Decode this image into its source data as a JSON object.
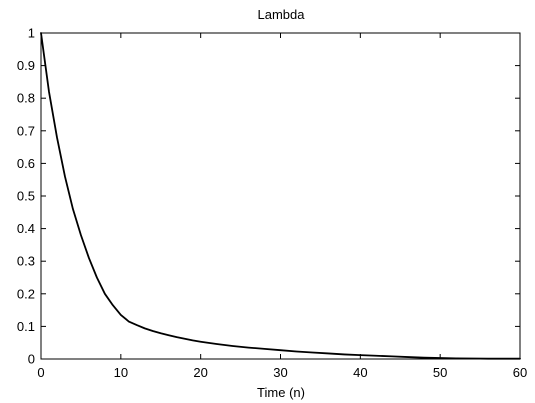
{
  "chart_data": {
    "type": "line",
    "title": "Lambda",
    "xlabel": "Time (n)",
    "ylabel": "",
    "xlim": [
      0,
      60
    ],
    "ylim": [
      0,
      1
    ],
    "grid": false,
    "x_ticks": [
      0,
      10,
      20,
      30,
      40,
      50,
      60
    ],
    "y_ticks": [
      0,
      0.1,
      0.2,
      0.3,
      0.4,
      0.5,
      0.6,
      0.7,
      0.8,
      0.9,
      1
    ],
    "x_tick_labels": [
      "0",
      "10",
      "20",
      "30",
      "40",
      "50",
      "60"
    ],
    "y_tick_labels": [
      "0",
      "0.1",
      "0.2",
      "0.3",
      "0.4",
      "0.5",
      "0.6",
      "0.7",
      "0.8",
      "0.9",
      "1"
    ],
    "colors": {
      "line": "#000000",
      "axes": "#000000",
      "background": "#ffffff"
    },
    "series": [
      {
        "x": [
          0,
          1,
          2,
          3,
          4,
          5,
          6,
          7,
          8,
          9,
          10,
          11,
          12,
          13,
          14,
          15,
          16,
          17,
          18,
          19,
          20,
          22,
          24,
          26,
          28,
          30,
          32,
          34,
          36,
          38,
          40,
          42,
          44,
          46,
          48,
          50,
          52,
          54,
          56,
          58,
          60
        ],
        "values": [
          1.0,
          0.82,
          0.68,
          0.56,
          0.46,
          0.38,
          0.31,
          0.25,
          0.2,
          0.165,
          0.135,
          0.115,
          0.104,
          0.094,
          0.086,
          0.079,
          0.073,
          0.067,
          0.062,
          0.057,
          0.053,
          0.046,
          0.04,
          0.035,
          0.031,
          0.027,
          0.023,
          0.02,
          0.017,
          0.014,
          0.012,
          0.01,
          0.008,
          0.006,
          0.004,
          0.003,
          0.002,
          0.0015,
          0.001,
          0.001,
          0.001
        ]
      }
    ]
  }
}
